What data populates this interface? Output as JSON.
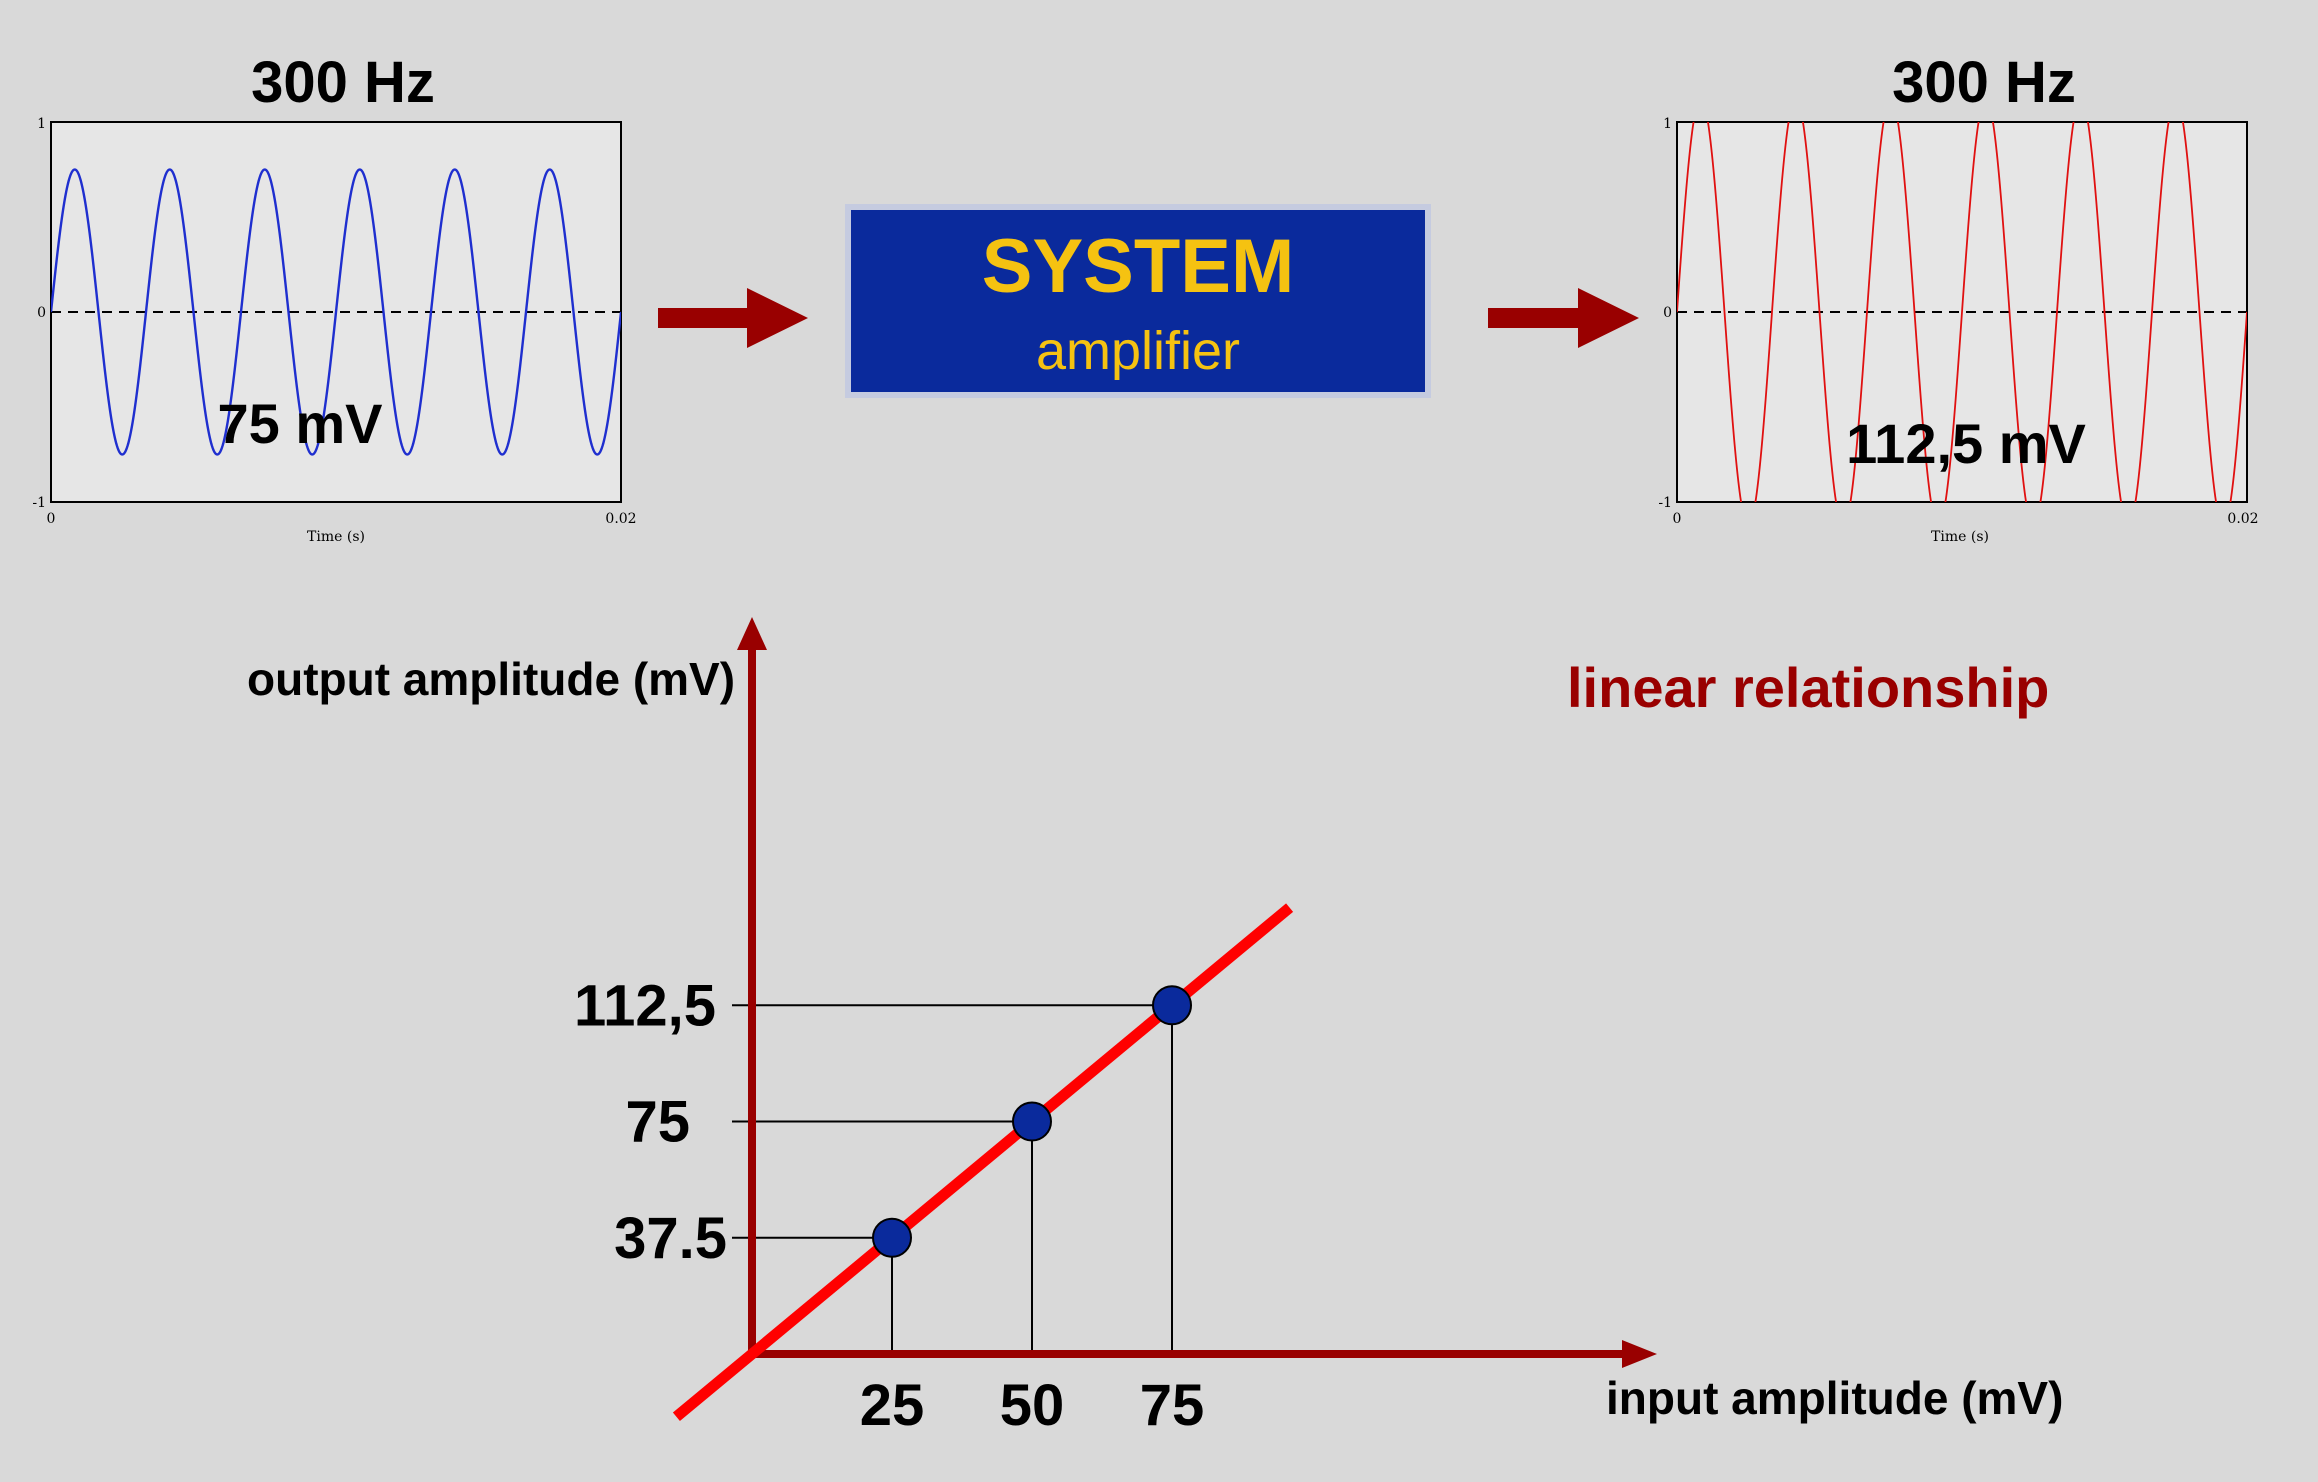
{
  "input_signal": {
    "frequency_label": "300 Hz",
    "amplitude_label": "75 mV",
    "y_ticks": [
      "1",
      "0",
      "-1"
    ],
    "x_ticks": [
      "0",
      "0.02"
    ],
    "x_axis_label": "Time (s)",
    "line_color": "#1f2fcf",
    "amplitude": 0.75,
    "cycles": 6
  },
  "system_box": {
    "title": "SYSTEM",
    "subtitle": "amplifier",
    "fill_color": "#0a2a9c",
    "text_color": "#f5c211"
  },
  "output_signal": {
    "frequency_label": "300 Hz",
    "amplitude_label": "112,5 mV",
    "y_ticks": [
      "1",
      "0",
      "-1"
    ],
    "x_ticks": [
      "0",
      "0.02"
    ],
    "x_axis_label": "Time (s)",
    "line_color": "#e01010",
    "amplitude": 1.125,
    "cycles": 6
  },
  "arrow_color": "#990000",
  "chart_data": {
    "type": "line",
    "title": "",
    "xlabel": "input amplitude (mV)",
    "ylabel": "output amplitude (mV)",
    "annotation": "linear relationship",
    "x_ticks": [
      "25",
      "50",
      "75"
    ],
    "y_ticks": [
      "37.5",
      "75",
      "112,5"
    ],
    "series": [
      {
        "values": [
          {
            "x": 0,
            "y": 0
          },
          {
            "x": 25,
            "y": 37.5
          },
          {
            "x": 50,
            "y": 75
          },
          {
            "x": 75,
            "y": 112.5
          }
        ]
      }
    ],
    "points": [
      {
        "x": 25,
        "y": 37.5
      },
      {
        "x": 50,
        "y": 75
      },
      {
        "x": 75,
        "y": 112.5
      }
    ],
    "xlim": [
      0,
      108
    ],
    "ylim": [
      0,
      135
    ],
    "axis_color": "#990000",
    "line_color": "#ff0000",
    "point_color": "#0a2a9c"
  }
}
